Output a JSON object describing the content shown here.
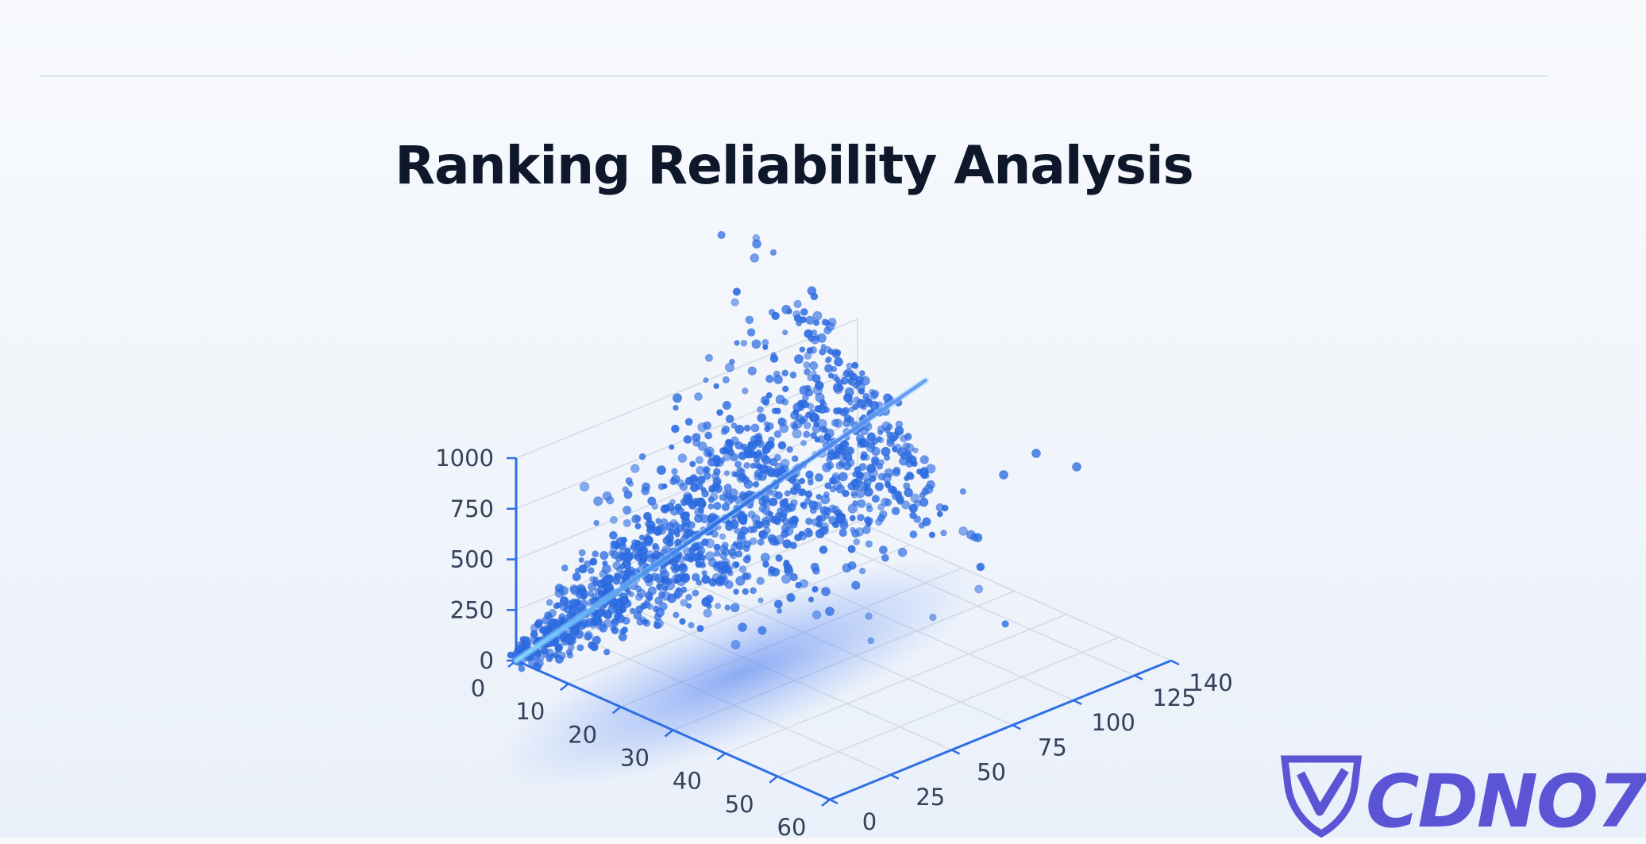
{
  "chart_data": {
    "type": "scatter",
    "title": "Ranking Reliability Analysis",
    "projection": "3d",
    "grid": true,
    "axes": {
      "x": {
        "range": [
          0,
          60
        ],
        "ticks": [
          0,
          10,
          20,
          30,
          40,
          50,
          60
        ]
      },
      "y": {
        "range": [
          0,
          140
        ],
        "ticks": [
          0,
          25,
          50,
          75,
          100,
          125,
          140
        ]
      },
      "z": {
        "range": [
          0,
          1000
        ],
        "ticks": [
          0,
          250,
          500,
          750,
          1000
        ]
      }
    },
    "series": [
      {
        "kind": "points",
        "color": "#2f6fe4",
        "description_of_distribution": "dense cloud along the diagonal from the origin toward (20, 125, 1000)",
        "point_count_approx": 1400
      },
      {
        "kind": "fit-line",
        "color": "#1f62e0",
        "from": [
          0,
          0,
          0
        ],
        "to": [
          20,
          125,
          1000
        ]
      }
    ]
  },
  "logo": {
    "text": "CDNO7"
  },
  "colors": {
    "accent": "#2563eb",
    "title": "#0f172a",
    "logo": "#5b55d6"
  }
}
